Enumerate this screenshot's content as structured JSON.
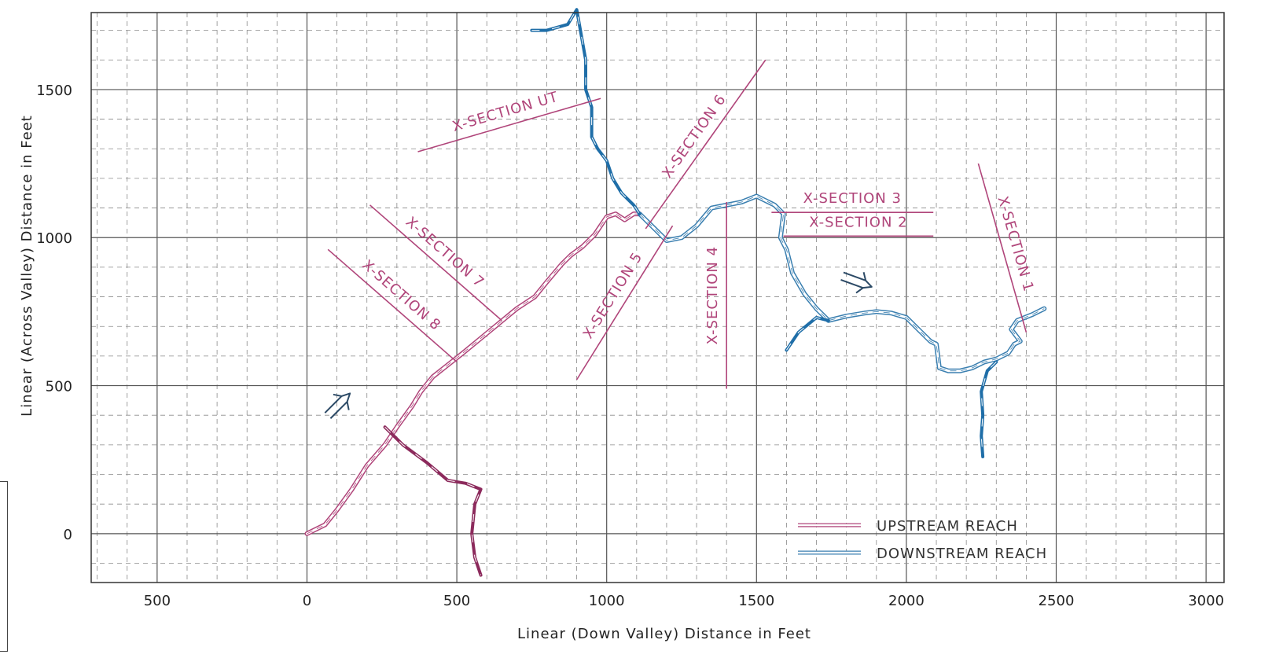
{
  "chart_data": {
    "type": "line",
    "xlabel": "Linear (Down Valley) Distance in Feet",
    "ylabel": "Linear (Across Valley) Distance in Feet",
    "xlim": [
      -720,
      3060
    ],
    "ylim": [
      -165,
      1760
    ],
    "x_ticks": [
      -500,
      0,
      500,
      1000,
      1500,
      2000,
      2500,
      3000
    ],
    "x_tick_labels": [
      "500",
      "0",
      "500",
      "1000",
      "1500",
      "2000",
      "2500",
      "3000"
    ],
    "y_ticks": [
      0,
      500,
      1000,
      1500
    ],
    "y_tick_labels": [
      "0",
      "500",
      "1000",
      "1500"
    ],
    "grid": "major solid every 500 ft, minor dashed every 100 ft",
    "colors": {
      "upstream": "#b0457a",
      "downstream": "#3a7fb0",
      "tributary_up": "#8c2a5c",
      "tributary_down": "#1f6ea8",
      "section": "#b0457a",
      "arrow": "#2c4a66",
      "grid_major": "#555555",
      "grid_minor": "#8a8a8a"
    },
    "series": [
      {
        "name": "UPSTREAM REACH",
        "style": "double-line",
        "x": [
          0,
          60,
          100,
          150,
          200,
          260,
          300,
          350,
          380,
          420,
          470,
          520,
          580,
          640,
          700,
          760,
          800,
          850,
          880,
          920,
          960,
          1000,
          1030,
          1060,
          1090,
          1110
        ],
        "y": [
          0,
          30,
          80,
          150,
          230,
          300,
          360,
          430,
          480,
          530,
          570,
          610,
          660,
          710,
          760,
          800,
          850,
          910,
          940,
          970,
          1010,
          1070,
          1080,
          1060,
          1080,
          1080
        ]
      },
      {
        "name": "DOWNSTREAM REACH",
        "style": "double-line",
        "x": [
          1110,
          1150,
          1200,
          1250,
          1300,
          1350,
          1400,
          1450,
          1500,
          1560,
          1590,
          1580,
          1600,
          1620,
          1660,
          1700,
          1740,
          1800,
          1860,
          1900,
          1950,
          2000,
          2050,
          2080,
          2100,
          2110,
          2140,
          2180,
          2220,
          2260,
          2300,
          2340,
          2360,
          2380,
          2350,
          2370,
          2420,
          2460
        ],
        "y": [
          1080,
          1040,
          990,
          1000,
          1040,
          1100,
          1110,
          1120,
          1140,
          1110,
          1080,
          1000,
          960,
          880,
          810,
          760,
          720,
          735,
          745,
          750,
          745,
          730,
          680,
          650,
          640,
          560,
          550,
          550,
          560,
          580,
          590,
          610,
          640,
          650,
          690,
          720,
          740,
          760
        ]
      },
      {
        "name": "",
        "style": "tributary",
        "color_key": "tributary_up",
        "x": [
          260,
          320,
          400,
          470,
          530,
          580,
          560,
          550,
          560,
          580
        ],
        "y": [
          360,
          300,
          240,
          180,
          170,
          150,
          100,
          0,
          -80,
          -140
        ]
      },
      {
        "name": "",
        "style": "tributary",
        "color_key": "tributary_down",
        "x": [
          750,
          800,
          870,
          900,
          930,
          930,
          950,
          950,
          970,
          1000,
          1020,
          1050,
          1090,
          1110
        ],
        "y": [
          1700,
          1700,
          1720,
          1770,
          1600,
          1500,
          1440,
          1340,
          1300,
          1260,
          1200,
          1150,
          1110,
          1080
        ]
      },
      {
        "name": "",
        "style": "tributary",
        "color_key": "tributary_down",
        "x": [
          1600,
          1640,
          1700,
          1740
        ],
        "y": [
          620,
          680,
          730,
          720
        ]
      },
      {
        "name": "",
        "style": "tributary",
        "color_key": "tributary_down",
        "x": [
          2300,
          2270,
          2250,
          2255,
          2250,
          2255
        ],
        "y": [
          580,
          550,
          480,
          400,
          330,
          260
        ]
      }
    ],
    "sections": [
      {
        "label": "X-SECTION UT",
        "x1": 370,
        "y1": 1290,
        "x2": 980,
        "y2": 1470
      },
      {
        "label": "X-SECTION 6",
        "x1": 1130,
        "y1": 1030,
        "x2": 1530,
        "y2": 1600
      },
      {
        "label": "X-SECTION 5",
        "x1": 900,
        "y1": 520,
        "x2": 1220,
        "y2": 1040
      },
      {
        "label": "X-SECTION 4",
        "x1": 1400,
        "y1": 490,
        "x2": 1400,
        "y2": 1120
      },
      {
        "label": "X-SECTION 3",
        "x1": 1550,
        "y1": 1085,
        "x2": 2090,
        "y2": 1085
      },
      {
        "label": "X-SECTION 2",
        "x1": 1590,
        "y1": 1005,
        "x2": 2090,
        "y2": 1005
      },
      {
        "label": "X-SECTION 1",
        "x1": 2240,
        "y1": 1250,
        "x2": 2400,
        "y2": 680
      },
      {
        "label": "X-SECTION 7",
        "x1": 210,
        "y1": 1110,
        "x2": 650,
        "y2": 720
      },
      {
        "label": "X-SECTION 8",
        "x1": 70,
        "y1": 960,
        "x2": 500,
        "y2": 580
      }
    ],
    "arrows": [
      {
        "x": 110,
        "y": 440,
        "dir": "up-right"
      },
      {
        "x": 1840,
        "y": 850,
        "dir": "right"
      }
    ],
    "legend": {
      "placement": "bottom-right",
      "entries": [
        "UPSTREAM REACH",
        "DOWNSTREAM REACH"
      ]
    }
  }
}
